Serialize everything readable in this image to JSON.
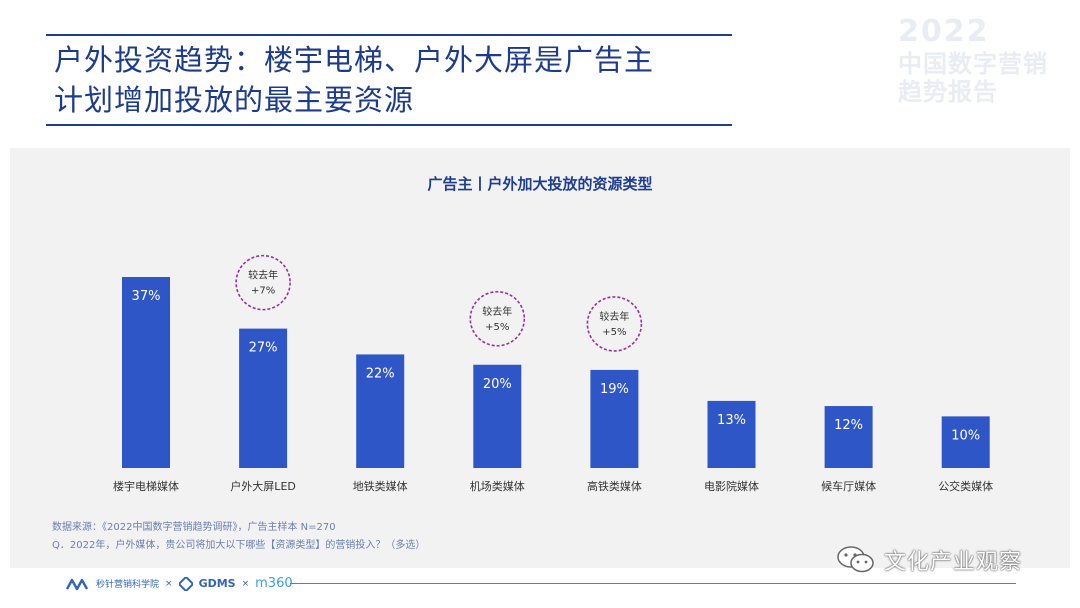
{
  "slide": {
    "title_line1": "户外投资趋势：楼宇电梯、户外大屏是广告主",
    "title_line2": "计划增加投放的最主要资源"
  },
  "brand": {
    "year": "2022",
    "line1": "中国数字营销",
    "line2": "趋势报告"
  },
  "chart_data": {
    "type": "bar",
    "title": "广告主丨户外加大投放的资源类型",
    "categories": [
      "楼宇电梯媒体",
      "户外大屏LED",
      "地铁类媒体",
      "机场类媒体",
      "高铁类媒体",
      "电影院媒体",
      "候车厅媒体",
      "公交类媒体"
    ],
    "values": [
      37,
      27,
      22,
      20,
      19,
      13,
      12,
      10
    ],
    "value_labels": [
      "37%",
      "27%",
      "22%",
      "20%",
      "19%",
      "13%",
      "12%",
      "10%"
    ],
    "unit": "%",
    "ylim": [
      0,
      40
    ],
    "bar_color": "#2f56c6",
    "annotations": [
      {
        "category": "户外大屏LED",
        "line1": "较去年",
        "line2": "+7%"
      },
      {
        "category": "机场类媒体",
        "line1": "较去年",
        "line2": "+5%"
      },
      {
        "category": "高铁类媒体",
        "line1": "较去年",
        "line2": "+5%"
      }
    ],
    "annotation_color": "#9b2f9e"
  },
  "notes": {
    "source": "数据来源：《2022中国数字营销趋势调研》，广告主样本 N=270",
    "question": "Q．2022年，户外媒体，贵公司将加大以下哪些【资源类型】的营销投入？（多选）"
  },
  "footer": {
    "logo1": "秒针营销科学院",
    "times": "×",
    "logo2": "GDMS",
    "logo3": "m360"
  },
  "watermark": {
    "text": "文化产业观察"
  }
}
